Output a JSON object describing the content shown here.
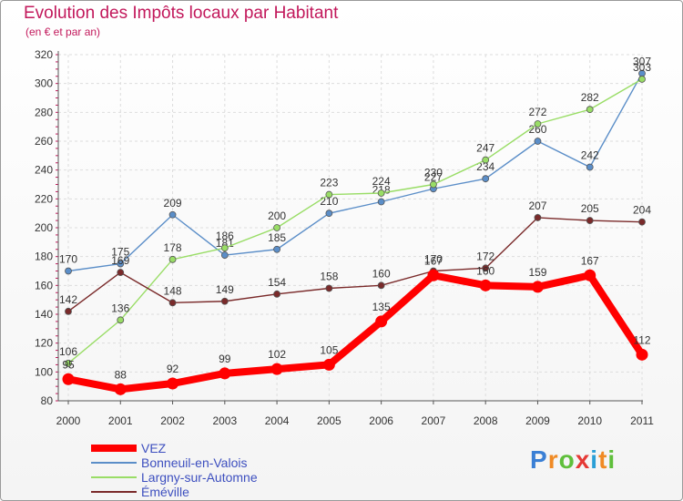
{
  "header": {
    "title": "Evolution des Impôts locaux par Habitant",
    "subtitle": "(en € et par an)"
  },
  "brand": {
    "letters": [
      "P",
      "r",
      "o",
      "x",
      "i",
      "t",
      "i"
    ]
  },
  "chart_data": {
    "type": "line",
    "title": "Evolution des Impôts locaux par Habitant",
    "subtitle": "(en € et par an)",
    "xlabel": "",
    "ylabel": "",
    "ylim": [
      80,
      320
    ],
    "yticks": [
      80,
      100,
      120,
      140,
      160,
      180,
      200,
      220,
      240,
      260,
      280,
      300,
      320
    ],
    "categories": [
      "2000",
      "2001",
      "2002",
      "2003",
      "2004",
      "2005",
      "2006",
      "2007",
      "2008",
      "2009",
      "2010",
      "2011"
    ],
    "series": [
      {
        "name": "VEZ",
        "color": "#ff0000",
        "values": [
          95,
          88,
          92,
          99,
          102,
          105,
          135,
          167,
          160,
          159,
          167,
          112
        ]
      },
      {
        "name": "Bonneuil-en-Valois",
        "color": "#5b8ec8",
        "values": [
          170,
          175,
          209,
          181,
          185,
          210,
          218,
          227,
          234,
          260,
          242,
          307
        ]
      },
      {
        "name": "Largny-sur-Automne",
        "color": "#99dd66",
        "values": [
          106,
          136,
          178,
          186,
          200,
          223,
          224,
          230,
          247,
          272,
          282,
          303
        ]
      },
      {
        "name": "Éméville",
        "color": "#7a2a2a",
        "values": [
          142,
          169,
          148,
          149,
          154,
          158,
          160,
          170,
          172,
          207,
          205,
          204
        ]
      }
    ],
    "legend_position": "bottom-left"
  }
}
